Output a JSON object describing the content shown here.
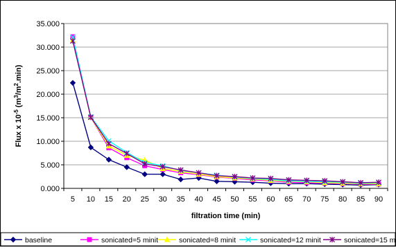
{
  "chart_data": {
    "type": "line",
    "title": "",
    "xlabel": "filtration time (min)",
    "ylabel": "Flux x 10-5 (m3/m2.min)",
    "ylabel_parts": {
      "prefix": "Flux x 10",
      "exp": "-5",
      "mid1": " (m",
      "sup1": "3",
      "mid2": "/m",
      "sup2": "2",
      "suffix": ".min)"
    },
    "ylim": [
      0,
      35
    ],
    "ytick_values": [
      0,
      5,
      10,
      15,
      20,
      25,
      30,
      35
    ],
    "ytick_labels": [
      "0.000",
      "5.000",
      "10.000",
      "15.000",
      "20.000",
      "25.000",
      "30.000",
      "35.000"
    ],
    "categories": [
      "5",
      "10",
      "15",
      "20",
      "25",
      "30",
      "35",
      "40",
      "45",
      "50",
      "55",
      "60",
      "65",
      "70",
      "75",
      "80",
      "85",
      "90"
    ],
    "grid": "horizontal",
    "legend_position": "bottom",
    "series": [
      {
        "name": "baseline",
        "color": "#000080",
        "marker": "diamond",
        "values": [
          22.4,
          8.7,
          6.1,
          4.5,
          3.0,
          3.0,
          1.9,
          2.2,
          1.5,
          1.4,
          1.3,
          1.1,
          1.0,
          1.0,
          0.9,
          0.8,
          0.7,
          0.8
        ]
      },
      {
        "name": "sonicated=5 minit",
        "color": "#ff00ff",
        "marker": "square",
        "values": [
          32.2,
          15.1,
          8.6,
          6.5,
          4.8,
          4.0,
          3.3,
          2.9,
          2.4,
          2.1,
          1.8,
          1.6,
          1.3,
          1.2,
          1.1,
          1.0,
          0.9,
          0.9
        ]
      },
      {
        "name": "sonicated=8 minit",
        "color": "#ffff00",
        "marker": "triangle",
        "values": [
          31.5,
          15.1,
          9.0,
          7.0,
          6.0,
          4.2,
          3.6,
          3.0,
          2.5,
          2.2,
          2.0,
          1.7,
          1.5,
          1.4,
          1.2,
          1.1,
          1.0,
          1.0
        ]
      },
      {
        "name": "sonicated=12 minit",
        "color": "#00ffff",
        "marker": "x",
        "values": [
          32.1,
          15.2,
          10.1,
          7.6,
          5.5,
          4.8,
          3.8,
          3.3,
          2.8,
          2.4,
          2.1,
          1.9,
          1.6,
          1.5,
          1.4,
          1.3,
          1.1,
          1.2
        ]
      },
      {
        "name": "sonicated=15 minit",
        "color": "#800080",
        "marker": "star",
        "values": [
          31.3,
          15.1,
          9.5,
          7.4,
          5.2,
          4.6,
          3.9,
          3.3,
          2.7,
          2.5,
          2.2,
          2.1,
          1.8,
          1.7,
          1.6,
          1.4,
          1.2,
          1.3
        ]
      }
    ]
  }
}
